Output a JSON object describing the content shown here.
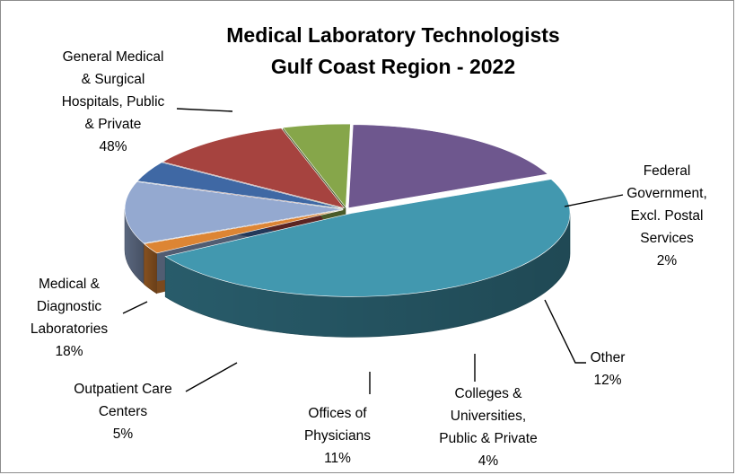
{
  "chart_data": {
    "type": "pie",
    "style": "3d-exploded",
    "title_lines": [
      "Medical Laboratory Technologists",
      "Gulf Coast Region - 2022"
    ],
    "legend": "none",
    "slices": [
      {
        "label_lines": [
          "General Medical",
          "& Surgical",
          "Hospitals, Public",
          "& Private"
        ],
        "value": 48,
        "pct_label": "48%",
        "color": "#4298AF"
      },
      {
        "label_lines": [
          "Federal",
          "Government,",
          "Excl. Postal",
          "Services"
        ],
        "value": 2,
        "pct_label": "2%",
        "color": "#DD8534"
      },
      {
        "label_lines": [
          "Other"
        ],
        "value": 12,
        "pct_label": "12%",
        "color": "#94A9D0"
      },
      {
        "label_lines": [
          "Colleges &",
          "Universities,",
          "Public & Private"
        ],
        "value": 4,
        "pct_label": "4%",
        "color": "#3F68A4"
      },
      {
        "label_lines": [
          "Offices of",
          "Physicians"
        ],
        "value": 11,
        "pct_label": "11%",
        "color": "#A6433F"
      },
      {
        "label_lines": [
          "Outpatient Care",
          "Centers"
        ],
        "value": 5,
        "pct_label": "5%",
        "color": "#86A64A"
      },
      {
        "label_lines": [
          "Medical &",
          "Diagnostic",
          "Laboratories"
        ],
        "value": 18,
        "pct_label": "18%",
        "color": "#6E578E"
      }
    ]
  }
}
